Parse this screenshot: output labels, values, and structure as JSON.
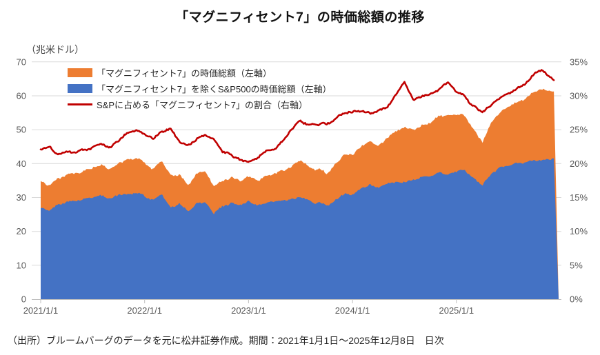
{
  "title": "「マグニフィセント7」の時価総額の推移",
  "source": "（出所）ブルームバーグのデータを元に松井証券作成。期間：2021年1月1日～2025年12月8日　日次",
  "axes": {
    "left_unit": "（兆米ドル）",
    "left_ticks": [
      0,
      10,
      20,
      30,
      40,
      50,
      60,
      70
    ],
    "right_ticks": [
      "0%",
      "5%",
      "10%",
      "15%",
      "20%",
      "25%",
      "30%",
      "35%"
    ],
    "x_ticks": [
      "2021/1/1",
      "2022/1/1",
      "2023/1/1",
      "2024/1/1",
      "2025/1/1"
    ]
  },
  "colors": {
    "mag7_area": "#ED7D31",
    "ex_mag7_area": "#4472C4",
    "ratio_line": "#C00000",
    "gridline": "#D9D9D9",
    "axis_line": "#BFBFBF",
    "axis_text": "#595959"
  },
  "chart_data": {
    "type": "area",
    "subtype": "stacked daily areas (left axis, trillion USD) with ratio line (right axis, %)",
    "period": {
      "start": "2021/1/1",
      "end": "2025/12/8",
      "frequency": "日次"
    },
    "ylim_left": [
      0,
      70
    ],
    "ylim_right_percent": [
      0,
      35
    ],
    "grid": "horizontal only",
    "legend_position": "top-left inside plot",
    "x_monthly": [
      "2021-01",
      "2021-02",
      "2021-03",
      "2021-04",
      "2021-05",
      "2021-06",
      "2021-07",
      "2021-08",
      "2021-09",
      "2021-10",
      "2021-11",
      "2021-12",
      "2022-01",
      "2022-02",
      "2022-03",
      "2022-04",
      "2022-05",
      "2022-06",
      "2022-07",
      "2022-08",
      "2022-09",
      "2022-10",
      "2022-11",
      "2022-12",
      "2023-01",
      "2023-02",
      "2023-03",
      "2023-04",
      "2023-05",
      "2023-06",
      "2023-07",
      "2023-08",
      "2023-09",
      "2023-10",
      "2023-11",
      "2023-12",
      "2024-01",
      "2024-02",
      "2024-03",
      "2024-04",
      "2024-05",
      "2024-06",
      "2024-07",
      "2024-08",
      "2024-09",
      "2024-10",
      "2024-11",
      "2024-12",
      "2025-01",
      "2025-02",
      "2025-03",
      "2025-04",
      "2025-05",
      "2025-06",
      "2025-07",
      "2025-08",
      "2025-09",
      "2025-10",
      "2025-11",
      "2025-12"
    ],
    "series": [
      {
        "name": "「マグニフィセント7」の時価総額（左軸）",
        "type": "area",
        "axis": "left",
        "color": "#ED7D31",
        "values": [
          7.7,
          7.7,
          7.5,
          8.0,
          7.9,
          8.2,
          8.6,
          8.9,
          8.5,
          9.2,
          10.1,
          10.4,
          9.7,
          9.1,
          10.0,
          9.4,
          8.4,
          7.7,
          8.7,
          9.3,
          7.9,
          7.6,
          7.7,
          7.2,
          7.3,
          7.3,
          8.0,
          8.2,
          8.9,
          9.9,
          10.8,
          10.1,
          9.9,
          9.6,
          10.7,
          11.5,
          11.8,
          12.5,
          12.8,
          12.5,
          13.4,
          14.9,
          16.3,
          14.8,
          15.3,
          15.9,
          16.7,
          17.3,
          16.7,
          16.0,
          14.4,
          12.7,
          15.0,
          16.3,
          17.3,
          18.0,
          19.0,
          20.3,
          20.9,
          19.9
        ]
      },
      {
        "name": "「マグニフィセント7」を除くS&P500の時価総額（左軸）",
        "type": "area",
        "axis": "left",
        "color": "#4472C4",
        "values": [
          26.8,
          26.3,
          27.7,
          28.5,
          28.9,
          29.3,
          29.7,
          30.4,
          29.3,
          30.6,
          30.9,
          31.6,
          30.3,
          29.4,
          30.8,
          27.6,
          27.9,
          26.1,
          28.1,
          28.9,
          25.3,
          27.2,
          28.5,
          27.6,
          28.9,
          27.9,
          28.8,
          29.0,
          28.9,
          29.9,
          30.0,
          29.1,
          28.3,
          27.6,
          29.5,
          30.7,
          31.2,
          32.5,
          34.0,
          32.7,
          34.1,
          34.3,
          34.5,
          35.4,
          35.9,
          36.6,
          37.5,
          37.2,
          37.6,
          37.8,
          36.1,
          33.8,
          37.0,
          38.5,
          39.5,
          40.0,
          40.5,
          40.7,
          40.9,
          41.1
        ]
      },
      {
        "name": "S&Pに占める「マグニフィセント7」の割合（右軸）",
        "type": "line",
        "axis": "right",
        "unit": "%",
        "color": "#C00000",
        "values": [
          22.2,
          22.6,
          21.4,
          21.9,
          21.5,
          22.0,
          22.4,
          22.7,
          22.4,
          23.2,
          24.6,
          24.8,
          24.2,
          23.6,
          24.6,
          25.3,
          23.2,
          22.8,
          23.7,
          24.3,
          23.7,
          21.8,
          21.2,
          20.6,
          20.1,
          20.8,
          21.7,
          22.1,
          23.5,
          25.0,
          26.4,
          25.7,
          25.9,
          25.8,
          26.6,
          27.2,
          27.5,
          27.8,
          27.4,
          27.6,
          28.3,
          30.2,
          32.1,
          29.5,
          29.9,
          30.2,
          30.9,
          31.8,
          30.8,
          29.8,
          28.5,
          27.3,
          28.8,
          29.8,
          30.5,
          31.1,
          31.9,
          33.2,
          33.8,
          32.7
        ]
      }
    ]
  }
}
